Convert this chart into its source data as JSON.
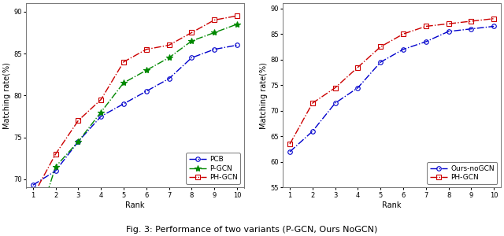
{
  "left": {
    "xlabel": "Rank",
    "ylabel": "Matching rate(%)",
    "xlim": [
      0.7,
      10.3
    ],
    "ylim": [
      69,
      91
    ],
    "yticks": [
      70,
      75,
      80,
      85,
      90
    ],
    "xticks": [
      1,
      2,
      3,
      4,
      5,
      6,
      7,
      8,
      9,
      10
    ],
    "series": [
      {
        "label": "PCB",
        "color": "#0000cc",
        "marker": "o",
        "x": [
          1,
          2,
          3,
          4,
          5,
          6,
          7,
          8,
          9,
          10
        ],
        "y": [
          69.3,
          71.0,
          74.5,
          77.5,
          79.0,
          80.5,
          82.0,
          84.5,
          85.5,
          86.0
        ]
      },
      {
        "label": "P-GCN",
        "color": "#008800",
        "marker": "*",
        "x": [
          1,
          2,
          3,
          4,
          5,
          6,
          7,
          8,
          9,
          10
        ],
        "y": [
          63.0,
          71.5,
          74.5,
          78.0,
          81.5,
          83.0,
          84.5,
          86.5,
          87.5,
          88.5
        ]
      },
      {
        "label": "PH-GCN",
        "color": "#cc0000",
        "marker": "s",
        "x": [
          1,
          2,
          3,
          4,
          5,
          6,
          7,
          8,
          9,
          10
        ],
        "y": [
          68.0,
          73.0,
          77.0,
          79.5,
          84.0,
          85.5,
          86.0,
          87.5,
          89.0,
          89.5
        ]
      }
    ]
  },
  "right": {
    "xlabel": "Rank",
    "ylabel": "Matching rate(%)",
    "xlim": [
      0.7,
      10.3
    ],
    "ylim": [
      55,
      91
    ],
    "yticks": [
      55,
      60,
      65,
      70,
      75,
      80,
      85,
      90
    ],
    "xticks": [
      1,
      2,
      3,
      4,
      5,
      6,
      7,
      8,
      9,
      10
    ],
    "series": [
      {
        "label": "Ours-noGCN",
        "color": "#0000cc",
        "marker": "o",
        "x": [
          1,
          2,
          3,
          4,
          5,
          6,
          7,
          8,
          9,
          10
        ],
        "y": [
          62.0,
          66.0,
          71.5,
          74.5,
          79.5,
          82.0,
          83.5,
          85.5,
          86.0,
          86.5
        ]
      },
      {
        "label": "PH-GCN",
        "color": "#cc0000",
        "marker": "s",
        "x": [
          1,
          2,
          3,
          4,
          5,
          6,
          7,
          8,
          9,
          10
        ],
        "y": [
          63.5,
          71.5,
          74.5,
          78.5,
          82.5,
          85.0,
          86.5,
          87.0,
          87.5,
          88.0
        ]
      }
    ]
  },
  "caption": "Fig. 3: Performance of two variants (P-GCN, Ours NoGCN)",
  "caption_fontsize": 8,
  "bg_color": "#ffffff",
  "axes_bg": "#ffffff",
  "spine_color": "#777777",
  "tick_fontsize": 6,
  "label_fontsize": 7,
  "legend_fontsize": 6.5,
  "linewidth": 1.0,
  "marker_size_o": 4,
  "marker_size_s": 4,
  "marker_size_star": 6
}
